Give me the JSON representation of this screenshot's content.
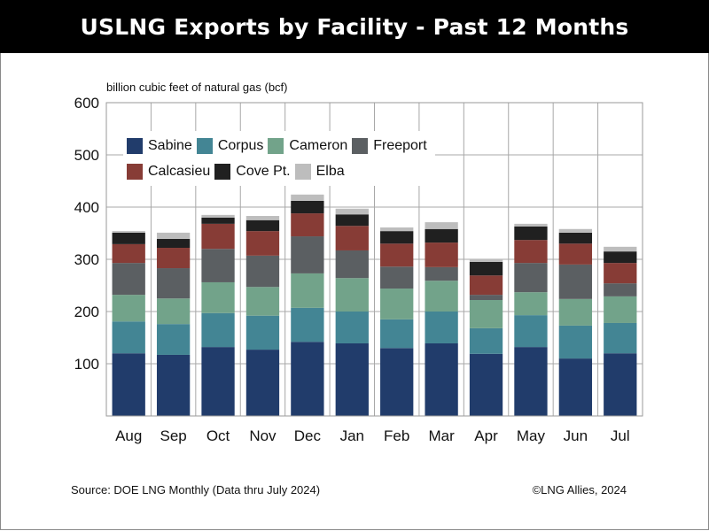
{
  "header": {
    "title": "USLNG Exports by Facility - Past 12 Months"
  },
  "footer": {
    "source": "Source: DOE LNG Monthly (Data thru July 2024)",
    "copyright": "©LNG Allies, 2024"
  },
  "chart_data": {
    "type": "bar",
    "stacked": true,
    "title": "USLNG Exports by Facility - Past 12 Months",
    "xlabel": "",
    "ylabel": "billion cubic feet of natural gas (bcf)",
    "ylim": [
      0,
      600
    ],
    "yticks": [
      100,
      200,
      300,
      400,
      500,
      600
    ],
    "grid": true,
    "legend_position": "top-left",
    "categories": [
      "Aug",
      "Sep",
      "Oct",
      "Nov",
      "Dec",
      "Jan",
      "Feb",
      "Mar",
      "Apr",
      "May",
      "Jun",
      "Jul"
    ],
    "series": [
      {
        "name": "Sabine",
        "color": "#213c6b",
        "values": [
          120,
          117,
          132,
          127,
          142,
          139,
          130,
          139,
          119,
          132,
          110,
          120
        ]
      },
      {
        "name": "Corpus",
        "color": "#438594",
        "values": [
          61,
          59,
          65,
          65,
          65,
          61,
          55,
          61,
          49,
          61,
          63,
          58
        ]
      },
      {
        "name": "Cameron",
        "color": "#72a38a",
        "values": [
          51,
          49,
          59,
          55,
          66,
          64,
          59,
          59,
          54,
          44,
          51,
          51
        ]
      },
      {
        "name": "Freeport",
        "color": "#5b5f62",
        "values": [
          61,
          58,
          64,
          60,
          71,
          53,
          42,
          26,
          10,
          56,
          66,
          25
        ]
      },
      {
        "name": "Calcasieu",
        "color": "#873c36",
        "values": [
          36,
          39,
          48,
          47,
          44,
          47,
          44,
          47,
          37,
          44,
          40,
          39
        ]
      },
      {
        "name": "Cove Pt.",
        "color": "#202020",
        "values": [
          22,
          17,
          12,
          21,
          24,
          22,
          24,
          26,
          26,
          26,
          21,
          22
        ]
      },
      {
        "name": "Elba",
        "color": "#bdbdbd",
        "values": [
          3,
          12,
          5,
          8,
          12,
          11,
          7,
          13,
          5,
          5,
          7,
          9
        ]
      }
    ]
  }
}
